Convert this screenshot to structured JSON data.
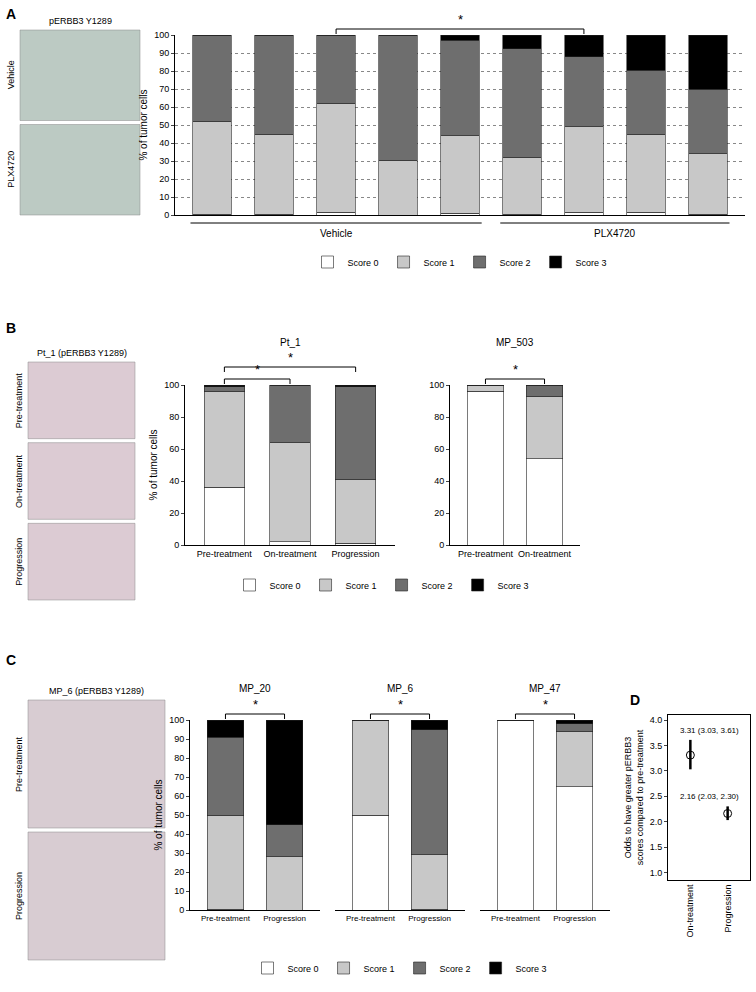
{
  "chart_data": [
    {
      "panel": "A",
      "type": "bar",
      "stacked": true,
      "categories": [
        null,
        null,
        null,
        null,
        null,
        null,
        null,
        null,
        null
      ],
      "groups": [
        {
          "label": "Vehicle",
          "from": 0,
          "to": 4
        },
        {
          "label": "PLX4720",
          "from": 5,
          "to": 8
        }
      ],
      "series": [
        {
          "name": "Score 0",
          "color": "#ffffff",
          "values": [
            0.5,
            0.5,
            1.5,
            0,
            1,
            0.5,
            1.5,
            1.5,
            0.5
          ]
        },
        {
          "name": "Score 1",
          "color": "#c8c8c8",
          "values": [
            51.5,
            44.5,
            60.5,
            30.5,
            43,
            31.5,
            47.5,
            43.5,
            33.5
          ]
        },
        {
          "name": "Score 2",
          "color": "#6e6e6e",
          "values": [
            48,
            55,
            38,
            69.5,
            53,
            60.5,
            39,
            35.5,
            36
          ]
        },
        {
          "name": "Score 3",
          "color": "#000000",
          "values": [
            0,
            0,
            0,
            0,
            3,
            7.5,
            12,
            19.5,
            30
          ]
        }
      ],
      "ylabel": "% of tumor cells",
      "ylim": [
        0,
        100
      ],
      "yticks": [
        0,
        10,
        20,
        30,
        40,
        50,
        60,
        70,
        80,
        90,
        100
      ],
      "grid": true,
      "legend": "bottom",
      "significance": [
        {
          "from": 2,
          "to": 6,
          "label": "*"
        }
      ]
    },
    {
      "panel": "B",
      "type": "bar",
      "stacked": true,
      "title": "Pt_1",
      "categories": [
        "Pre-treatment",
        "On-treatment",
        "Progression"
      ],
      "series": [
        {
          "name": "Score 0",
          "color": "#ffffff",
          "values": [
            36,
            2,
            1
          ]
        },
        {
          "name": "Score 1",
          "color": "#c8c8c8",
          "values": [
            60,
            62,
            40
          ]
        },
        {
          "name": "Score 2",
          "color": "#6e6e6e",
          "values": [
            3,
            36,
            58
          ]
        },
        {
          "name": "Score 3",
          "color": "#000000",
          "values": [
            1,
            0,
            1
          ]
        }
      ],
      "ylabel": "% of tumor cells",
      "ylim": [
        0,
        100
      ],
      "yticks": [
        0,
        20,
        40,
        60,
        80,
        100
      ],
      "legend": "bottom",
      "significance": [
        {
          "from": 0,
          "to": 1,
          "label": "*"
        },
        {
          "from": 0,
          "to": 2,
          "label": "*"
        }
      ]
    },
    {
      "panel": "B",
      "type": "bar",
      "stacked": true,
      "title": "MP_503",
      "categories": [
        "Pre-treatment",
        "On-treatment"
      ],
      "series": [
        {
          "name": "Score 0",
          "color": "#ffffff",
          "values": [
            96,
            54
          ]
        },
        {
          "name": "Score 1",
          "color": "#c8c8c8",
          "values": [
            4,
            39
          ]
        },
        {
          "name": "Score 2",
          "color": "#6e6e6e",
          "values": [
            0,
            7
          ]
        },
        {
          "name": "Score 3",
          "color": "#000000",
          "values": [
            0,
            0
          ]
        }
      ],
      "ylim": [
        0,
        100
      ],
      "yticks": [
        0,
        20,
        40,
        60,
        80,
        100
      ],
      "significance": [
        {
          "from": 0,
          "to": 1,
          "label": "*"
        }
      ]
    },
    {
      "panel": "C",
      "type": "bar",
      "stacked": true,
      "title": "MP_20",
      "categories": [
        "Pre-treatment",
        "Progression"
      ],
      "series": [
        {
          "name": "Score 0",
          "color": "#ffffff",
          "values": [
            0.5,
            0
          ]
        },
        {
          "name": "Score 1",
          "color": "#c8c8c8",
          "values": [
            49.5,
            28
          ]
        },
        {
          "name": "Score 2",
          "color": "#6e6e6e",
          "values": [
            41,
            17
          ]
        },
        {
          "name": "Score 3",
          "color": "#000000",
          "values": [
            9,
            55
          ]
        }
      ],
      "ylabel": "% of tumor cells",
      "ylim": [
        0,
        100
      ],
      "yticks": [
        0,
        10,
        20,
        30,
        40,
        50,
        60,
        70,
        80,
        90,
        100
      ],
      "legend": "bottom",
      "significance": [
        {
          "from": 0,
          "to": 1,
          "label": "*"
        }
      ]
    },
    {
      "panel": "C",
      "type": "bar",
      "stacked": true,
      "title": "MP_6",
      "categories": [
        "Pre-treatment",
        "Progression"
      ],
      "series": [
        {
          "name": "Score 0",
          "color": "#ffffff",
          "values": [
            50,
            0.5
          ]
        },
        {
          "name": "Score 1",
          "color": "#c8c8c8",
          "values": [
            50,
            28.5
          ]
        },
        {
          "name": "Score 2",
          "color": "#6e6e6e",
          "values": [
            0,
            66
          ]
        },
        {
          "name": "Score 3",
          "color": "#000000",
          "values": [
            0,
            5
          ]
        }
      ],
      "significance": [
        {
          "from": 0,
          "to": 1,
          "label": "*"
        }
      ]
    },
    {
      "panel": "C",
      "type": "bar",
      "stacked": true,
      "title": "MP_47",
      "categories": [
        "Pre-treatment",
        "Progression"
      ],
      "series": [
        {
          "name": "Score 0",
          "color": "#ffffff",
          "values": [
            99.5,
            65
          ]
        },
        {
          "name": "Score 1",
          "color": "#c8c8c8",
          "values": [
            0.5,
            29
          ]
        },
        {
          "name": "Score 2",
          "color": "#6e6e6e",
          "values": [
            0,
            4
          ]
        },
        {
          "name": "Score 3",
          "color": "#000000",
          "values": [
            0,
            2
          ]
        }
      ],
      "significance": [
        {
          "from": 0,
          "to": 1,
          "label": "*"
        }
      ]
    },
    {
      "panel": "D",
      "type": "scatter",
      "marker": "circle-open",
      "categories": [
        "On-treatment",
        "Progression"
      ],
      "values": [
        3.31,
        2.16
      ],
      "ci_low": [
        3.03,
        2.03
      ],
      "ci_high": [
        3.61,
        2.3
      ],
      "value_labels": [
        "3.31 (3.03, 3.61)",
        "2.16 (2.03, 2.30)"
      ],
      "ylabel": "Odds to have greater pERBB3 scores compared to pre-treatment",
      "ylim": [
        0.85,
        4.1
      ],
      "yticks": [
        {
          "value": 1,
          "label": "1.0"
        },
        1.5,
        {
          "value": 2,
          "label": "2.0"
        },
        2.5,
        {
          "value": 3,
          "label": "3.0"
        },
        3.5,
        {
          "value": 4,
          "label": "4.0"
        }
      ]
    }
  ],
  "micrographs": [
    {
      "panel": "A",
      "title": "pERBB3 Y1289",
      "rows": [
        "Vehicle",
        "PLX4720"
      ]
    },
    {
      "panel": "B",
      "title": "Pt_1 (pERBB3 Y1289)",
      "rows": [
        "Pre-treatment",
        "On-treatment",
        "Progression"
      ]
    },
    {
      "panel": "C",
      "title": "MP_6 (pERBB3 Y1289)",
      "rows": [
        "Pre-treatment",
        "Progression"
      ]
    }
  ]
}
